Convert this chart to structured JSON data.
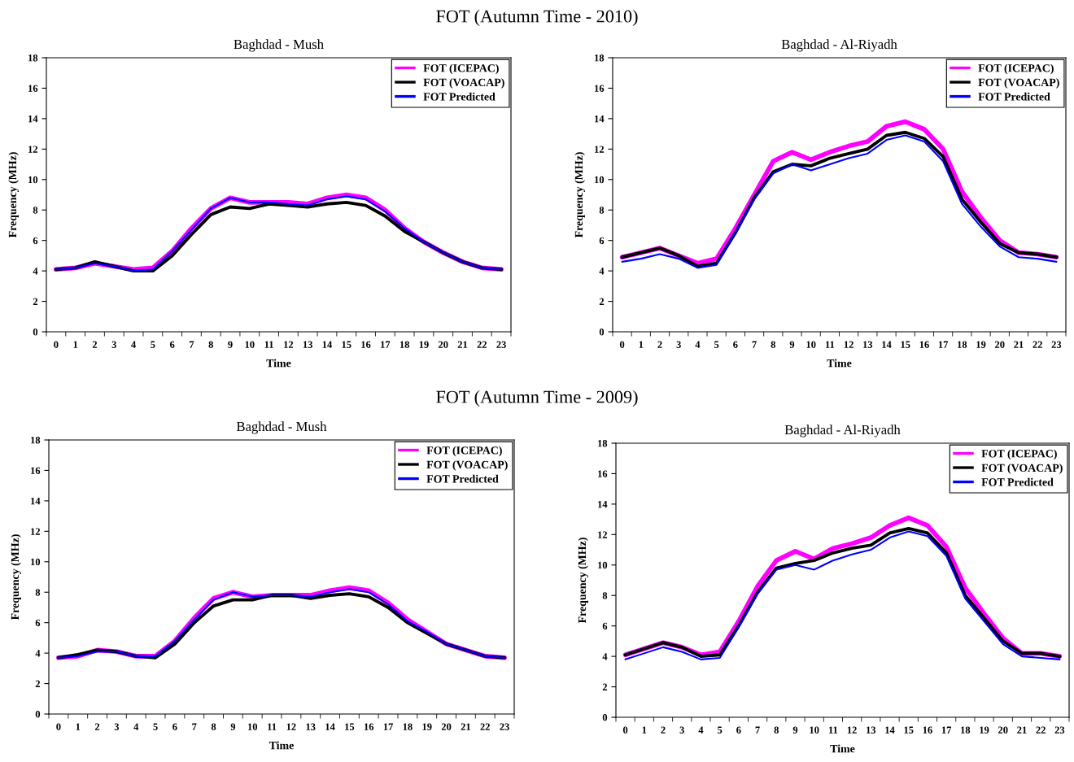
{
  "chart_data": [
    {
      "type": "line",
      "title": "Baghdad - Mush",
      "annotations": [
        "FOT (Autumn Time - 2010)"
      ],
      "xlabel": "Time",
      "ylabel": "Frequency (MHz)",
      "categories": [
        "0",
        "1",
        "2",
        "3",
        "4",
        "5",
        "6",
        "7",
        "8",
        "9",
        "10",
        "11",
        "12",
        "13",
        "14",
        "15",
        "16",
        "17",
        "18",
        "19",
        "20",
        "21",
        "22",
        "23"
      ],
      "ylim": [
        0,
        18
      ],
      "yticks": [
        0,
        2,
        4,
        6,
        8,
        10,
        12,
        14,
        16,
        18
      ],
      "grid": false,
      "legend": "top right",
      "marker": "none",
      "line_style": "solid",
      "series": [
        {
          "name": "FOT (ICEPAC)",
          "color": "#ff00ff",
          "values": [
            4.1,
            4.2,
            4.5,
            4.3,
            4.1,
            4.2,
            5.3,
            6.8,
            8.1,
            8.8,
            8.5,
            8.5,
            8.5,
            8.4,
            8.8,
            9.0,
            8.8,
            8.0,
            6.8,
            5.9,
            5.2,
            4.6,
            4.2,
            4.1
          ]
        },
        {
          "name": "FOT (VOACAP)",
          "color": "#000000",
          "values": [
            4.1,
            4.2,
            4.6,
            4.3,
            4.0,
            4.0,
            5.0,
            6.4,
            7.7,
            8.2,
            8.1,
            8.4,
            8.3,
            8.2,
            8.4,
            8.5,
            8.3,
            7.6,
            6.6,
            5.9,
            5.2,
            4.6,
            4.2,
            4.1
          ]
        },
        {
          "name": "FOT Predicted",
          "color": "#0000ff",
          "values": [
            4.1,
            4.2,
            4.5,
            4.3,
            4.0,
            4.1,
            5.3,
            6.7,
            8.1,
            8.8,
            8.5,
            8.5,
            8.4,
            8.3,
            8.7,
            8.9,
            8.7,
            7.9,
            6.8,
            5.9,
            5.2,
            4.6,
            4.2,
            4.1
          ]
        }
      ]
    },
    {
      "type": "line",
      "title": "Baghdad - Al-Riyadh",
      "xlabel": "Time",
      "ylabel": "Frequency (MHz)",
      "categories": [
        "0",
        "1",
        "2",
        "3",
        "4",
        "5",
        "6",
        "7",
        "8",
        "9",
        "10",
        "11",
        "12",
        "13",
        "14",
        "15",
        "16",
        "17",
        "18",
        "19",
        "20",
        "21",
        "22",
        "23"
      ],
      "ylim": [
        0,
        18
      ],
      "yticks": [
        0,
        2,
        4,
        6,
        8,
        10,
        12,
        14,
        16,
        18
      ],
      "grid": false,
      "legend": "top right",
      "marker": "none",
      "line_style": "solid",
      "series": [
        {
          "name": "FOT (ICEPAC)",
          "color": "#ff00ff",
          "values": [
            4.9,
            5.2,
            5.5,
            5.0,
            4.5,
            4.8,
            6.8,
            9.0,
            11.2,
            11.8,
            11.3,
            11.8,
            12.2,
            12.5,
            13.5,
            13.8,
            13.3,
            12.0,
            9.2,
            7.5,
            6.0,
            5.2,
            5.1,
            4.9
          ]
        },
        {
          "name": "FOT (VOACAP)",
          "color": "#000000",
          "values": [
            4.9,
            5.2,
            5.5,
            5.0,
            4.3,
            4.5,
            6.5,
            8.8,
            10.5,
            11.0,
            10.9,
            11.4,
            11.7,
            12.0,
            12.9,
            13.1,
            12.7,
            11.5,
            8.7,
            7.2,
            5.8,
            5.2,
            5.1,
            4.9
          ]
        },
        {
          "name": "FOT Predicted",
          "color": "#0000ff",
          "values": [
            4.6,
            4.8,
            5.1,
            4.8,
            4.2,
            4.4,
            6.5,
            8.7,
            10.4,
            11.0,
            10.6,
            11.0,
            11.4,
            11.7,
            12.6,
            12.9,
            12.5,
            11.2,
            8.4,
            6.9,
            5.6,
            4.9,
            4.8,
            4.6
          ]
        }
      ]
    },
    {
      "type": "line",
      "title": "Baghdad - Mush",
      "annotations": [
        "FOT (Autumn Time - 2009)"
      ],
      "xlabel": "Time",
      "ylabel": "Frequency (MHz)",
      "categories": [
        "0",
        "1",
        "2",
        "3",
        "4",
        "5",
        "6",
        "7",
        "8",
        "9",
        "10",
        "11",
        "12",
        "13",
        "14",
        "15",
        "16",
        "17",
        "18",
        "19",
        "20",
        "21",
        "22",
        "23"
      ],
      "ylim": [
        0,
        18
      ],
      "yticks": [
        0,
        2,
        4,
        6,
        8,
        10,
        12,
        14,
        16,
        18
      ],
      "grid": false,
      "legend": "top right",
      "marker": "none",
      "line_style": "solid",
      "series": [
        {
          "name": "FOT (ICEPAC)",
          "color": "#ff00ff",
          "values": [
            3.7,
            3.8,
            4.2,
            4.1,
            3.8,
            3.8,
            4.8,
            6.3,
            7.6,
            8.0,
            7.7,
            7.8,
            7.8,
            7.8,
            8.1,
            8.3,
            8.1,
            7.3,
            6.2,
            5.4,
            4.6,
            4.2,
            3.8,
            3.7
          ]
        },
        {
          "name": "FOT (VOACAP)",
          "color": "#000000",
          "values": [
            3.7,
            3.9,
            4.2,
            4.1,
            3.8,
            3.7,
            4.6,
            6.0,
            7.1,
            7.5,
            7.5,
            7.8,
            7.8,
            7.6,
            7.8,
            7.9,
            7.7,
            7.0,
            6.0,
            5.3,
            4.6,
            4.2,
            3.8,
            3.7
          ]
        },
        {
          "name": "FOT Predicted",
          "color": "#0000ff",
          "values": [
            3.7,
            3.8,
            4.1,
            4.1,
            3.8,
            3.8,
            4.8,
            6.2,
            7.5,
            8.0,
            7.7,
            7.8,
            7.8,
            7.7,
            8.0,
            8.2,
            8.0,
            7.2,
            6.1,
            5.4,
            4.6,
            4.2,
            3.8,
            3.7
          ]
        }
      ]
    },
    {
      "type": "line",
      "title": "Baghdad - Al-Riyadh",
      "xlabel": "Time",
      "ylabel": "Frequency (MHz)",
      "categories": [
        "0",
        "1",
        "2",
        "3",
        "4",
        "5",
        "6",
        "7",
        "8",
        "9",
        "10",
        "11",
        "12",
        "13",
        "14",
        "15",
        "16",
        "17",
        "18",
        "19",
        "20",
        "21",
        "22",
        "23"
      ],
      "ylim": [
        0,
        18
      ],
      "yticks": [
        0,
        2,
        4,
        6,
        8,
        10,
        12,
        14,
        16,
        18
      ],
      "grid": false,
      "legend": "top right",
      "marker": "none",
      "line_style": "solid",
      "series": [
        {
          "name": "FOT (ICEPAC)",
          "color": "#ff00ff",
          "values": [
            4.1,
            4.5,
            4.9,
            4.6,
            4.1,
            4.3,
            6.3,
            8.6,
            10.3,
            10.9,
            10.4,
            11.1,
            11.4,
            11.8,
            12.6,
            13.1,
            12.6,
            11.2,
            8.5,
            6.8,
            5.2,
            4.2,
            4.2,
            4.0
          ]
        },
        {
          "name": "FOT (VOACAP)",
          "color": "#000000",
          "values": [
            4.1,
            4.5,
            4.9,
            4.6,
            4.0,
            4.1,
            6.0,
            8.2,
            9.8,
            10.1,
            10.3,
            10.8,
            11.1,
            11.3,
            12.1,
            12.4,
            12.1,
            10.8,
            8.0,
            6.5,
            5.0,
            4.2,
            4.2,
            4.0
          ]
        },
        {
          "name": "FOT Predicted",
          "color": "#0000ff",
          "values": [
            3.8,
            4.2,
            4.6,
            4.3,
            3.8,
            3.9,
            5.9,
            8.1,
            9.7,
            10.0,
            9.7,
            10.3,
            10.7,
            11.0,
            11.8,
            12.2,
            11.9,
            10.6,
            7.8,
            6.3,
            4.8,
            4.0,
            3.9,
            3.8
          ]
        }
      ]
    }
  ]
}
